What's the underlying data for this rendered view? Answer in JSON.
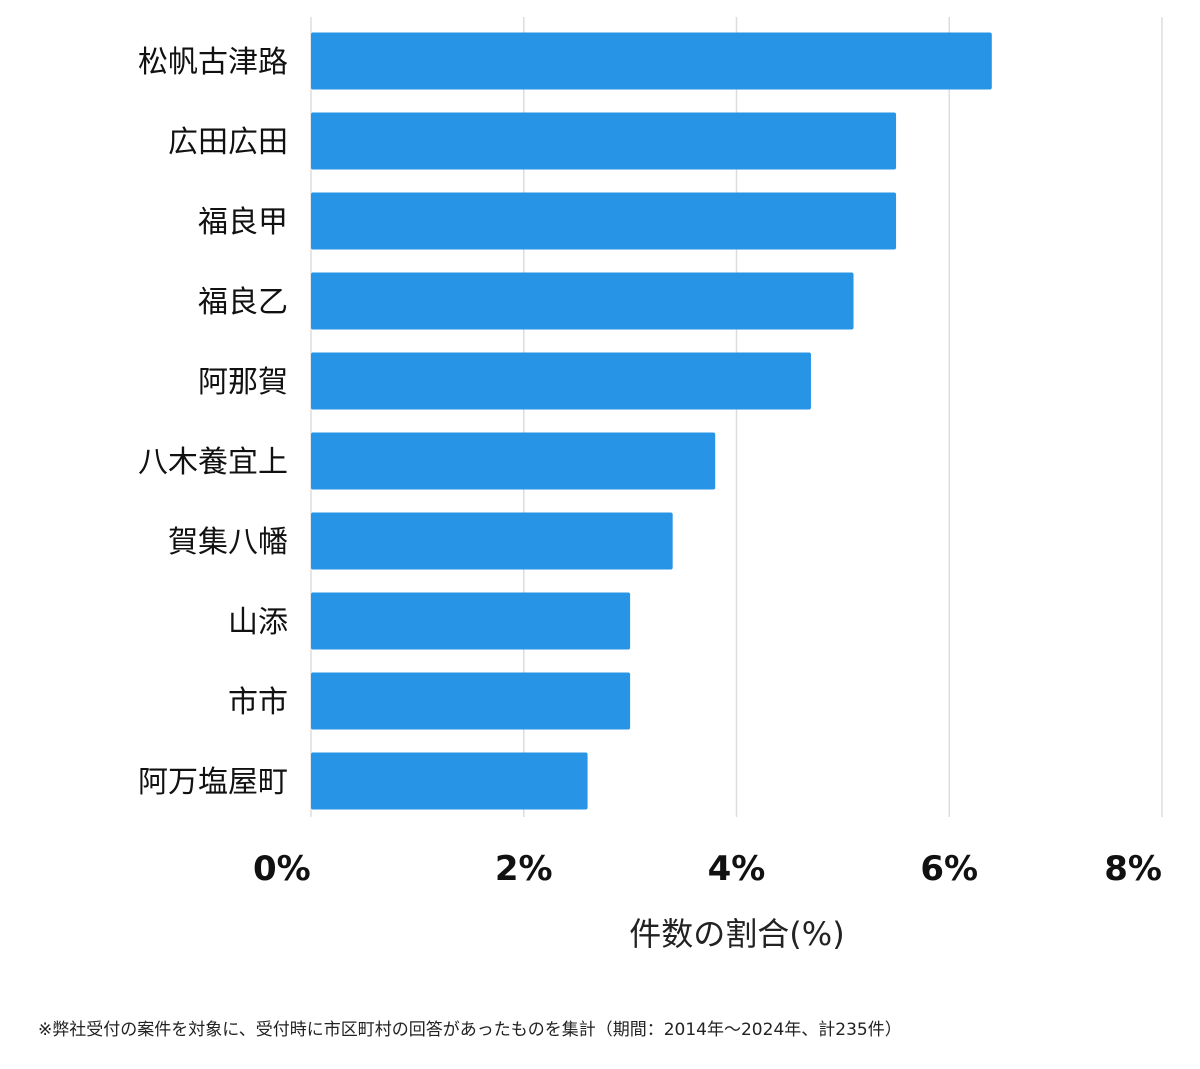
{
  "chart_data": {
    "type": "bar",
    "orientation": "horizontal",
    "categories": [
      "松帆古津路",
      "広田広田",
      "福良甲",
      "福良乙",
      "阿那賀",
      "八木養宜上",
      "賀集八幡",
      "山添",
      "市市",
      "阿万塩屋町"
    ],
    "values": [
      6.4,
      5.5,
      5.5,
      5.1,
      4.7,
      3.8,
      3.4,
      3.0,
      3.0,
      2.6
    ],
    "xlim": [
      0,
      8
    ],
    "xticks": [
      0,
      2,
      4,
      6,
      8
    ],
    "xtick_labels": [
      "0%",
      "2%",
      "4%",
      "6%",
      "8%"
    ],
    "xlabel": "件数の割合(%)",
    "grid": "vertical",
    "bar_color": "#2894E6",
    "grid_color": "#DDDDDD"
  },
  "footnote": "※弊社受付の案件を対象に、受付時に市区町村の回答があったものを集計（期間：2014年～2024年、計235件）"
}
